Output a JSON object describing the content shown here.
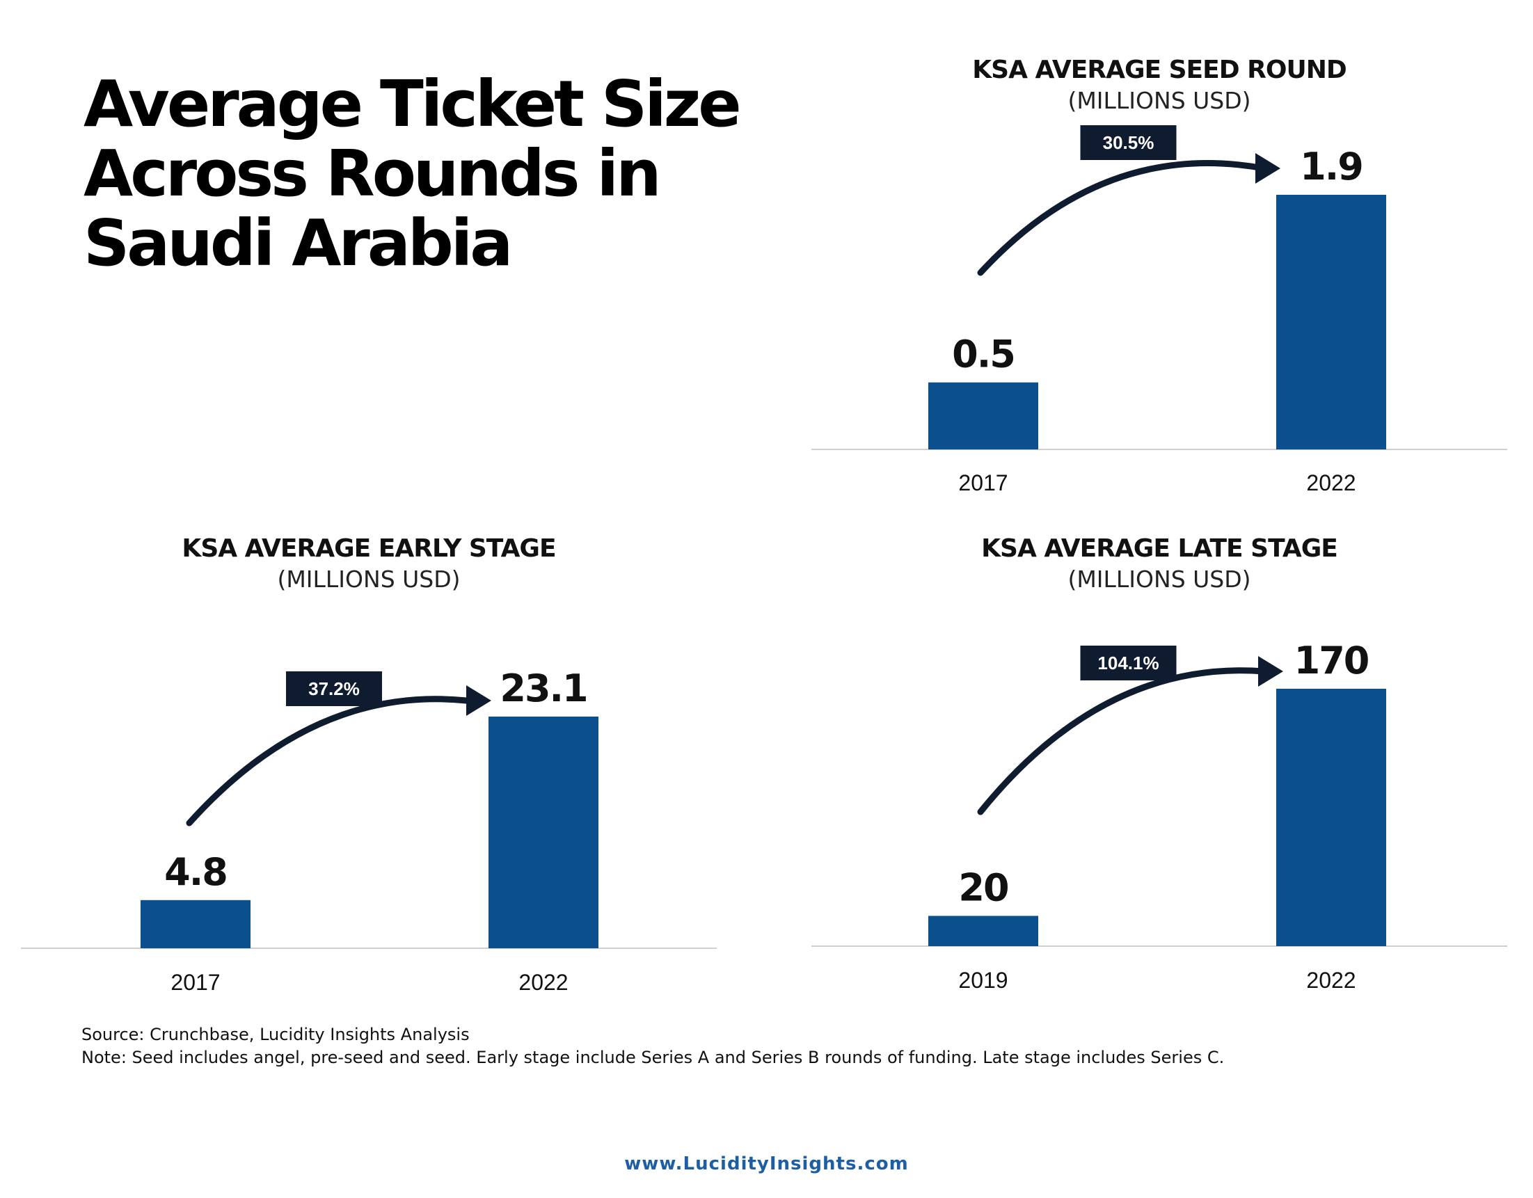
{
  "page": {
    "title": "Average Ticket Size Across Rounds in Saudi Arabia",
    "source": "Source: Crunchbase, Lucidity Insights Analysis",
    "note": "Note: Seed includes angel, pre-seed and seed. Early stage include Series A and Series B rounds of funding. Late stage includes Series C.",
    "website": "www.LucidityInsights.com"
  },
  "colors": {
    "bar": "#0b4f8c",
    "arrow": "#0f1b2e",
    "badge_bg": "#0f1b2e",
    "badge_text": "#ffffff",
    "axis": "#d0d0d0",
    "link": "#1d5fa5"
  },
  "chart_data": [
    {
      "type": "bar",
      "title": "KSA AVERAGE SEED ROUND",
      "subtitle": "(MILLIONS USD)",
      "categories": [
        "2017",
        "2022"
      ],
      "values": [
        0.5,
        1.9
      ],
      "value_labels": [
        "0.5",
        "1.9"
      ],
      "growth_label": "30.5%",
      "ylim": [
        0,
        2.1
      ],
      "grid": false,
      "legend": "none"
    },
    {
      "type": "bar",
      "title": "KSA AVERAGE EARLY STAGE",
      "subtitle": "(MILLIONS USD)",
      "categories": [
        "2017",
        "2022"
      ],
      "values": [
        4.8,
        23.1
      ],
      "value_labels": [
        "4.8",
        "23.1"
      ],
      "growth_label": "37.2%",
      "ylim": [
        0,
        26
      ],
      "grid": false,
      "legend": "none"
    },
    {
      "type": "bar",
      "title": "KSA AVERAGE LATE STAGE",
      "subtitle": "(MILLIONS USD)",
      "categories": [
        "2019",
        "2022"
      ],
      "values": [
        20,
        170
      ],
      "value_labels": [
        "20",
        "170"
      ],
      "growth_label": "104.1%",
      "ylim": [
        0,
        200
      ],
      "grid": false,
      "legend": "none"
    }
  ]
}
